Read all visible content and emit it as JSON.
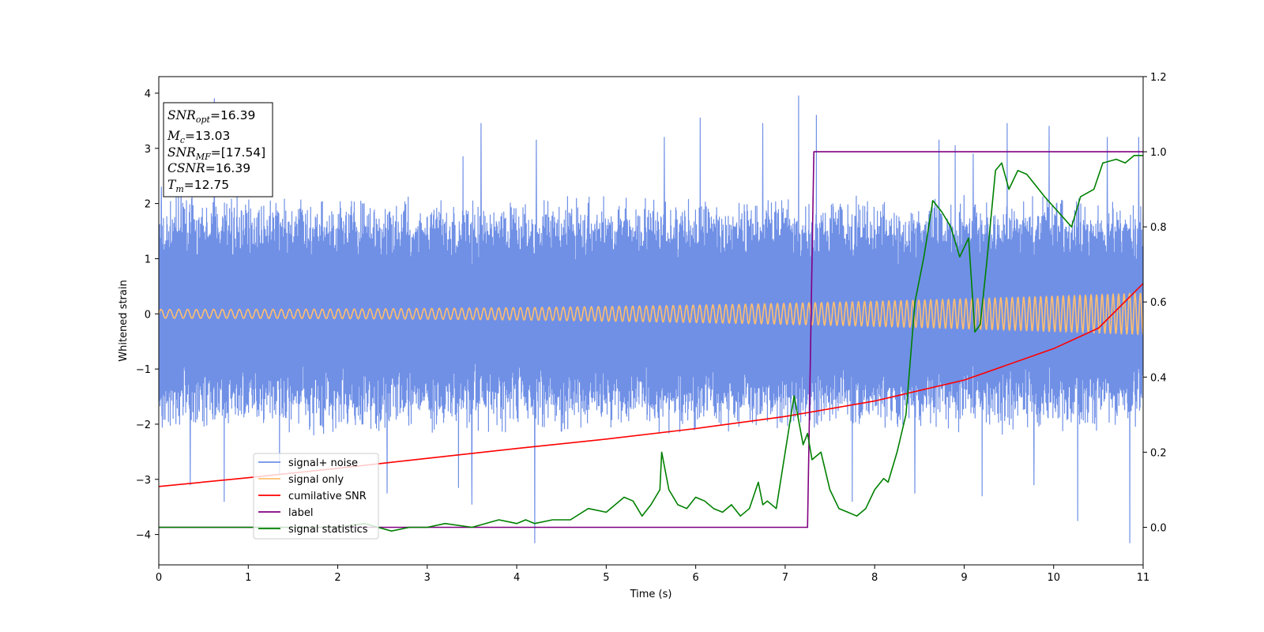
{
  "chart_data": {
    "type": "line",
    "xlabel": "Time (s)",
    "ylabel": "Whitened strain",
    "xlim": [
      0,
      11
    ],
    "ylim": [
      -4.55,
      4.3
    ],
    "y2lim": [
      -0.1,
      1.2
    ],
    "xticks": [
      "0",
      "1",
      "2",
      "3",
      "4",
      "5",
      "6",
      "7",
      "8",
      "9",
      "10",
      "11"
    ],
    "yticks": [
      "4",
      "3",
      "2",
      "1",
      "0",
      "−1",
      "−2",
      "−3",
      "−4"
    ],
    "y2ticks": [
      "1.2",
      "1.0",
      "0.8",
      "0.6",
      "0.4",
      "0.2",
      "0.0"
    ],
    "grid": false,
    "legend_position": "lower-left",
    "annotation": {
      "lines": [
        {
          "var": "SNR",
          "sub": "opt",
          "text": "=16.39"
        },
        {
          "var": "M",
          "sub": "c",
          "text": "=13.03"
        },
        {
          "var": "SNR",
          "sub": "MF",
          "text": "=[17.54]"
        },
        {
          "var": "CSNR",
          "sub": "",
          "text": "=16.39"
        },
        {
          "var": "T",
          "sub": "m",
          "text": "=12.75"
        }
      ]
    },
    "series": [
      {
        "name": "signal+ noise",
        "axis": "left",
        "color": "#7090e6",
        "kind": "noise",
        "band_low_abs": 1.55,
        "band_high_abs": 2.2,
        "spikes": [
          [
            0.03,
            2.3
          ],
          [
            0.25,
            2.45
          ],
          [
            0.35,
            -3.1
          ],
          [
            0.62,
            3.9
          ],
          [
            0.73,
            -3.4
          ],
          [
            1.35,
            -2.9
          ],
          [
            2.55,
            -3.25
          ],
          [
            3.35,
            -3.15
          ],
          [
            3.4,
            2.85
          ],
          [
            3.5,
            -3.45
          ],
          [
            3.6,
            3.45
          ],
          [
            4.2,
            -4.15
          ],
          [
            4.22,
            3.15
          ],
          [
            5.65,
            3.2
          ],
          [
            6.05,
            3.55
          ],
          [
            6.75,
            3.45
          ],
          [
            7.15,
            3.95
          ],
          [
            7.35,
            3.6
          ],
          [
            7.75,
            -3.4
          ],
          [
            8.45,
            -3.25
          ],
          [
            8.72,
            3.15
          ],
          [
            8.9,
            3.05
          ],
          [
            9.1,
            2.9
          ],
          [
            9.2,
            -3.3
          ],
          [
            9.48,
            3.45
          ],
          [
            9.78,
            -3.1
          ],
          [
            9.95,
            3.4
          ],
          [
            10.27,
            -3.75
          ],
          [
            10.6,
            3.2
          ],
          [
            10.85,
            -4.15
          ],
          [
            10.95,
            3.2
          ]
        ]
      },
      {
        "name": "signal only",
        "axis": "left",
        "color": "#ffbe6f",
        "kind": "chirp",
        "cycles_per_s": [
          10,
          16.5
        ],
        "amplitude": [
          0.08,
          0.38
        ]
      },
      {
        "name": "cumilative SNR",
        "axis": "left",
        "color": "#ff0000",
        "x": [
          0,
          1,
          2,
          3,
          4,
          5,
          6,
          7,
          8,
          9,
          10,
          10.5,
          11
        ],
        "y": [
          -3.13,
          -2.97,
          -2.8,
          -2.62,
          -2.44,
          -2.27,
          -2.08,
          -1.86,
          -1.58,
          -1.2,
          -0.63,
          -0.26,
          0.55
        ]
      },
      {
        "name": "label",
        "axis": "right",
        "color": "#800080",
        "x": [
          0,
          7.25,
          7.32,
          11
        ],
        "y": [
          0.0,
          0.0,
          1.0,
          1.0
        ]
      },
      {
        "name": "signal statistics",
        "axis": "right",
        "color": "#008000",
        "x": [
          0,
          1.0,
          2.0,
          2.3,
          2.45,
          2.6,
          2.8,
          3.0,
          3.2,
          3.5,
          3.8,
          4.0,
          4.1,
          4.2,
          4.4,
          4.6,
          4.8,
          5.0,
          5.1,
          5.2,
          5.3,
          5.4,
          5.5,
          5.6,
          5.62,
          5.7,
          5.8,
          5.9,
          6.0,
          6.1,
          6.2,
          6.3,
          6.4,
          6.5,
          6.6,
          6.7,
          6.75,
          6.8,
          6.9,
          7.0,
          7.1,
          7.2,
          7.25,
          7.3,
          7.4,
          7.5,
          7.6,
          7.7,
          7.8,
          7.9,
          8.0,
          8.1,
          8.15,
          8.25,
          8.35,
          8.45,
          8.55,
          8.65,
          8.75,
          8.85,
          8.95,
          9.05,
          9.12,
          9.18,
          9.25,
          9.35,
          9.42,
          9.5,
          9.6,
          9.7,
          9.8,
          9.9,
          10.05,
          10.2,
          10.3,
          10.45,
          10.55,
          10.7,
          10.8,
          10.9,
          11.0
        ],
        "y": [
          0.0,
          0.0,
          0.0,
          0.01,
          0.0,
          -0.01,
          0.0,
          0.0,
          0.01,
          0.0,
          0.02,
          0.01,
          0.02,
          0.01,
          0.02,
          0.02,
          0.05,
          0.04,
          0.06,
          0.08,
          0.07,
          0.03,
          0.06,
          0.1,
          0.2,
          0.1,
          0.06,
          0.05,
          0.08,
          0.07,
          0.05,
          0.04,
          0.06,
          0.03,
          0.05,
          0.12,
          0.06,
          0.07,
          0.05,
          0.2,
          0.35,
          0.22,
          0.25,
          0.18,
          0.2,
          0.1,
          0.05,
          0.04,
          0.03,
          0.05,
          0.1,
          0.13,
          0.12,
          0.2,
          0.3,
          0.6,
          0.72,
          0.87,
          0.84,
          0.8,
          0.72,
          0.77,
          0.52,
          0.54,
          0.7,
          0.95,
          0.97,
          0.9,
          0.95,
          0.94,
          0.91,
          0.88,
          0.84,
          0.8,
          0.88,
          0.9,
          0.97,
          0.98,
          0.97,
          0.99,
          0.99
        ]
      }
    ]
  }
}
